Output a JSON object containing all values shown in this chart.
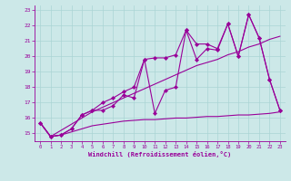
{
  "xlabel": "Windchill (Refroidissement éolien,°C)",
  "xlim": [
    -0.5,
    23.5
  ],
  "ylim": [
    14.5,
    23.3
  ],
  "yticks": [
    15,
    16,
    17,
    18,
    19,
    20,
    21,
    22,
    23
  ],
  "xticks": [
    0,
    1,
    2,
    3,
    4,
    5,
    6,
    7,
    8,
    9,
    10,
    11,
    12,
    13,
    14,
    15,
    16,
    17,
    18,
    19,
    20,
    21,
    22,
    23
  ],
  "bg_color": "#cce8e8",
  "line_color": "#990099",
  "grid_color": "#aad4d4",
  "series": [
    {
      "x": [
        0,
        1,
        2,
        3,
        4,
        5,
        6,
        7,
        8,
        9,
        10,
        11,
        12,
        13,
        14,
        15,
        16,
        17,
        18,
        19,
        20,
        21,
        22,
        23
      ],
      "y": [
        15.7,
        14.8,
        14.9,
        15.3,
        16.2,
        16.5,
        16.5,
        16.8,
        17.5,
        17.3,
        19.8,
        16.3,
        17.8,
        18.0,
        21.7,
        19.8,
        20.5,
        20.4,
        22.1,
        20.0,
        22.7,
        21.2,
        18.5,
        16.5
      ],
      "marker": "D",
      "ms": 2.2,
      "lw": 0.8
    },
    {
      "x": [
        0,
        1,
        2,
        3,
        4,
        5,
        6,
        7,
        8,
        9,
        10,
        11,
        12,
        13,
        14,
        15,
        16,
        17,
        18,
        19,
        20,
        21,
        22,
        23
      ],
      "y": [
        15.7,
        14.8,
        14.9,
        15.3,
        16.2,
        16.5,
        17.0,
        17.3,
        17.7,
        18.0,
        19.8,
        19.9,
        19.9,
        20.1,
        21.7,
        20.8,
        20.8,
        20.5,
        22.1,
        20.0,
        22.7,
        21.2,
        18.5,
        16.5
      ],
      "marker": "D",
      "ms": 2.2,
      "lw": 0.8
    },
    {
      "x": [
        0,
        1,
        2,
        3,
        4,
        5,
        6,
        7,
        8,
        9,
        10,
        11,
        12,
        13,
        14,
        15,
        16,
        17,
        18,
        19,
        20,
        21,
        22,
        23
      ],
      "y": [
        15.7,
        14.8,
        15.2,
        15.6,
        16.0,
        16.4,
        16.7,
        17.0,
        17.3,
        17.6,
        17.9,
        18.2,
        18.5,
        18.8,
        19.1,
        19.4,
        19.6,
        19.8,
        20.1,
        20.3,
        20.6,
        20.8,
        21.1,
        21.3
      ],
      "marker": null,
      "ms": 0,
      "lw": 0.8
    },
    {
      "x": [
        0,
        1,
        2,
        3,
        4,
        5,
        6,
        7,
        8,
        9,
        10,
        11,
        12,
        13,
        14,
        15,
        16,
        17,
        18,
        19,
        20,
        21,
        22,
        23
      ],
      "y": [
        15.7,
        14.8,
        14.9,
        15.1,
        15.3,
        15.5,
        15.6,
        15.7,
        15.8,
        15.85,
        15.9,
        15.9,
        15.95,
        16.0,
        16.0,
        16.05,
        16.1,
        16.1,
        16.15,
        16.2,
        16.2,
        16.25,
        16.3,
        16.4
      ],
      "marker": null,
      "ms": 0,
      "lw": 0.8
    }
  ]
}
